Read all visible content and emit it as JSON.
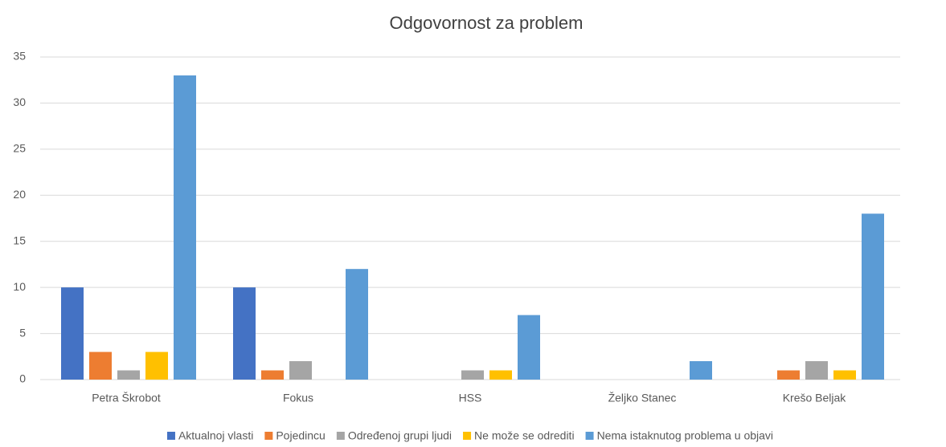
{
  "chart_data": {
    "type": "bar",
    "title": "Odgovornost za problem",
    "categories": [
      "Petra Škrobot",
      "Fokus",
      "HSS",
      "Željko Stanec",
      "Krešo Beljak"
    ],
    "series": [
      {
        "name": "Aktualnoj vlasti",
        "color": "#4472c4",
        "values": [
          10,
          10,
          0,
          0,
          0
        ]
      },
      {
        "name": "Pojedincu",
        "color": "#ed7d31",
        "values": [
          3,
          1,
          0,
          0,
          1
        ]
      },
      {
        "name": "Određenoj grupi ljudi",
        "color": "#a5a5a5",
        "values": [
          1,
          2,
          1,
          0,
          2
        ]
      },
      {
        "name": "Ne može se odrediti",
        "color": "#ffc000",
        "values": [
          3,
          0,
          1,
          0,
          1
        ]
      },
      {
        "name": "Nema istaknutog problema u objavi",
        "color": "#5b9bd5",
        "values": [
          33,
          12,
          7,
          2,
          18
        ]
      }
    ],
    "ylim": [
      0,
      35
    ],
    "yticks": [
      0,
      5,
      10,
      15,
      20,
      25,
      30,
      35
    ],
    "grid": true,
    "legend": "bottom"
  }
}
